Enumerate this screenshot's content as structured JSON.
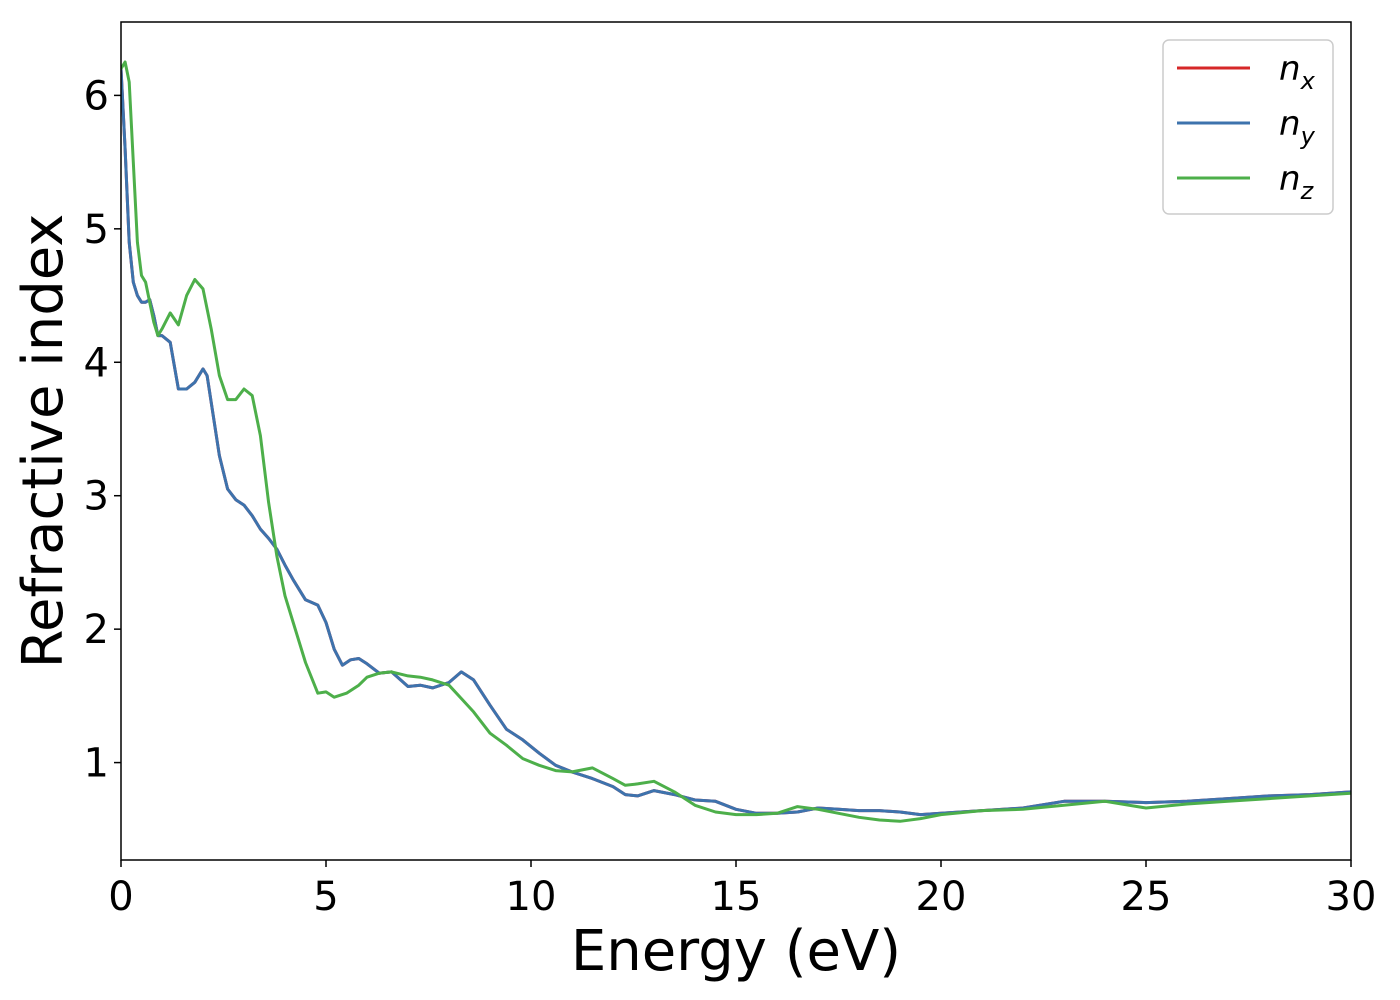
{
  "chart_data": {
    "type": "line",
    "xlabel": "Energy (eV)",
    "ylabel": "Refractive index",
    "xlim": [
      0,
      30
    ],
    "ylim": [
      0.27,
      6.55
    ],
    "x_ticks": [
      "0",
      "5",
      "10",
      "15",
      "20",
      "25",
      "30"
    ],
    "y_ticks": [
      "1",
      "2",
      "3",
      "4",
      "5",
      "6"
    ],
    "grid": false,
    "legend_position": "top-right",
    "series": [
      {
        "name": "n_x",
        "label_base": "n",
        "label_sub": "x",
        "color": "#d62728",
        "x": [
          0,
          0.1,
          0.2,
          0.3,
          0.4,
          0.5,
          0.6,
          0.7,
          0.8,
          0.9,
          1.0,
          1.2,
          1.4,
          1.6,
          1.8,
          2.0,
          2.1,
          2.2,
          2.4,
          2.6,
          2.8,
          3.0,
          3.2,
          3.4,
          3.6,
          3.8,
          4.0,
          4.2,
          4.5,
          4.8,
          5.0,
          5.2,
          5.4,
          5.6,
          5.8,
          6.0,
          6.3,
          6.6,
          7.0,
          7.3,
          7.6,
          8.0,
          8.3,
          8.6,
          9.0,
          9.4,
          9.8,
          10.2,
          10.6,
          11.0,
          11.5,
          12.0,
          12.3,
          12.6,
          13.0,
          13.5,
          14.0,
          14.5,
          15.0,
          15.5,
          16.0,
          16.5,
          17.0,
          17.5,
          18.0,
          18.5,
          19.0,
          19.5,
          20.0,
          21.0,
          22.0,
          23.0,
          24.0,
          25.0,
          26.0,
          27.0,
          28.0,
          29.0,
          30.0
        ],
        "y": [
          6.2,
          5.6,
          4.9,
          4.6,
          4.5,
          4.45,
          4.45,
          4.47,
          4.35,
          4.2,
          4.2,
          4.15,
          3.8,
          3.8,
          3.85,
          3.95,
          3.9,
          3.7,
          3.3,
          3.05,
          2.97,
          2.93,
          2.85,
          2.75,
          2.68,
          2.6,
          2.48,
          2.37,
          2.22,
          2.18,
          2.05,
          1.85,
          1.73,
          1.77,
          1.78,
          1.74,
          1.67,
          1.68,
          1.57,
          1.58,
          1.56,
          1.6,
          1.68,
          1.62,
          1.43,
          1.25,
          1.17,
          1.07,
          0.98,
          0.93,
          0.88,
          0.82,
          0.76,
          0.75,
          0.79,
          0.76,
          0.72,
          0.71,
          0.65,
          0.62,
          0.62,
          0.63,
          0.66,
          0.65,
          0.64,
          0.64,
          0.63,
          0.61,
          0.62,
          0.64,
          0.66,
          0.71,
          0.71,
          0.7,
          0.71,
          0.73,
          0.75,
          0.76,
          0.78
        ]
      },
      {
        "name": "n_y",
        "label_base": "n",
        "label_sub": "y",
        "color": "#3d73ad",
        "x": [
          0,
          0.1,
          0.2,
          0.3,
          0.4,
          0.5,
          0.6,
          0.7,
          0.8,
          0.9,
          1.0,
          1.2,
          1.4,
          1.6,
          1.8,
          2.0,
          2.1,
          2.2,
          2.4,
          2.6,
          2.8,
          3.0,
          3.2,
          3.4,
          3.6,
          3.8,
          4.0,
          4.2,
          4.5,
          4.8,
          5.0,
          5.2,
          5.4,
          5.6,
          5.8,
          6.0,
          6.3,
          6.6,
          7.0,
          7.3,
          7.6,
          8.0,
          8.3,
          8.6,
          9.0,
          9.4,
          9.8,
          10.2,
          10.6,
          11.0,
          11.5,
          12.0,
          12.3,
          12.6,
          13.0,
          13.5,
          14.0,
          14.5,
          15.0,
          15.5,
          16.0,
          16.5,
          17.0,
          17.5,
          18.0,
          18.5,
          19.0,
          19.5,
          20.0,
          21.0,
          22.0,
          23.0,
          24.0,
          25.0,
          26.0,
          27.0,
          28.0,
          29.0,
          30.0
        ],
        "y": [
          6.2,
          5.6,
          4.9,
          4.6,
          4.5,
          4.45,
          4.45,
          4.47,
          4.35,
          4.2,
          4.2,
          4.15,
          3.8,
          3.8,
          3.85,
          3.95,
          3.9,
          3.7,
          3.3,
          3.05,
          2.97,
          2.93,
          2.85,
          2.75,
          2.68,
          2.6,
          2.48,
          2.37,
          2.22,
          2.18,
          2.05,
          1.85,
          1.73,
          1.77,
          1.78,
          1.74,
          1.67,
          1.68,
          1.57,
          1.58,
          1.56,
          1.6,
          1.68,
          1.62,
          1.43,
          1.25,
          1.17,
          1.07,
          0.98,
          0.93,
          0.88,
          0.82,
          0.76,
          0.75,
          0.79,
          0.76,
          0.72,
          0.71,
          0.65,
          0.62,
          0.62,
          0.63,
          0.66,
          0.65,
          0.64,
          0.64,
          0.63,
          0.61,
          0.62,
          0.64,
          0.66,
          0.71,
          0.71,
          0.7,
          0.71,
          0.73,
          0.75,
          0.76,
          0.78
        ]
      },
      {
        "name": "n_z",
        "label_base": "n",
        "label_sub": "z",
        "color": "#4daf4a",
        "x": [
          0,
          0.1,
          0.2,
          0.3,
          0.4,
          0.5,
          0.6,
          0.7,
          0.8,
          0.9,
          1.0,
          1.2,
          1.4,
          1.6,
          1.8,
          2.0,
          2.2,
          2.4,
          2.6,
          2.8,
          3.0,
          3.2,
          3.4,
          3.6,
          3.8,
          4.0,
          4.2,
          4.5,
          4.8,
          5.0,
          5.2,
          5.5,
          5.8,
          6.0,
          6.3,
          6.6,
          7.0,
          7.3,
          7.6,
          8.0,
          8.3,
          8.6,
          9.0,
          9.4,
          9.8,
          10.2,
          10.6,
          11.0,
          11.5,
          12.0,
          12.3,
          12.6,
          13.0,
          13.5,
          14.0,
          14.5,
          15.0,
          15.5,
          16.0,
          16.5,
          17.0,
          17.5,
          18.0,
          18.5,
          19.0,
          19.5,
          20.0,
          21.0,
          22.0,
          23.0,
          24.0,
          25.0,
          26.0,
          27.0,
          28.0,
          29.0,
          30.0
        ],
        "y": [
          6.2,
          6.25,
          6.1,
          5.5,
          4.9,
          4.65,
          4.6,
          4.45,
          4.3,
          4.2,
          4.25,
          4.37,
          4.28,
          4.5,
          4.62,
          4.55,
          4.25,
          3.9,
          3.72,
          3.72,
          3.8,
          3.75,
          3.45,
          2.95,
          2.55,
          2.25,
          2.05,
          1.75,
          1.52,
          1.53,
          1.49,
          1.52,
          1.58,
          1.64,
          1.67,
          1.68,
          1.65,
          1.64,
          1.62,
          1.58,
          1.48,
          1.38,
          1.22,
          1.13,
          1.03,
          0.98,
          0.94,
          0.93,
          0.96,
          0.88,
          0.83,
          0.84,
          0.86,
          0.78,
          0.68,
          0.63,
          0.61,
          0.61,
          0.62,
          0.67,
          0.65,
          0.62,
          0.59,
          0.57,
          0.56,
          0.58,
          0.61,
          0.64,
          0.65,
          0.68,
          0.71,
          0.66,
          0.69,
          0.71,
          0.73,
          0.75,
          0.77
        ]
      }
    ]
  }
}
